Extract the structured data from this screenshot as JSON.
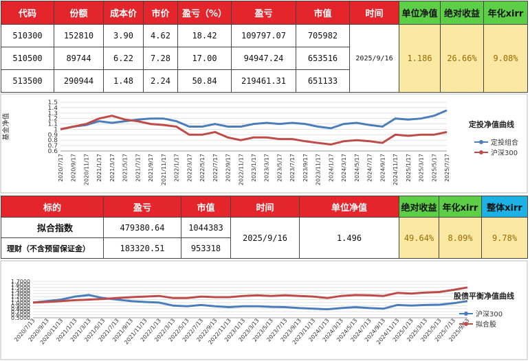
{
  "tables": [
    {
      "headers": [
        "代码",
        "份额",
        "成本价",
        "市价",
        "盈亏（%）",
        "盈亏",
        "市值",
        "时间",
        "单位净值",
        "绝对收益",
        "年化xirr"
      ],
      "rows": [
        [
          "510300",
          "152810",
          "3.90",
          "4.62",
          "18.42",
          "109797.07",
          "705982"
        ],
        [
          "510500",
          "89744",
          "6.22",
          "7.28",
          "17.00",
          "94947.24",
          "653516"
        ],
        [
          "513500",
          "290944",
          "1.48",
          "2.24",
          "50.84",
          "219461.31",
          "651133"
        ]
      ],
      "summary": [
        "2025/9/16",
        "1.186",
        "26.66%",
        "9.08%"
      ]
    },
    {
      "headers": [
        "标的",
        "盈亏",
        "市值",
        "时间",
        "单位净值",
        "绝对收益",
        "年化xirr",
        "整体xirr"
      ],
      "rows": [
        [
          "拟合指数",
          "479380.64",
          "1044383"
        ],
        [
          "理财（不含预留保证金）",
          "183320.51",
          "953318"
        ]
      ],
      "summary": [
        "2025/9/16",
        "1.496",
        "49.64%",
        "8.09%",
        "9.78%"
      ]
    }
  ],
  "chart_data": [
    {
      "type": "line",
      "title": "定投净值曲线",
      "y_label": "基金净值",
      "grid": true,
      "categories": [
        "2020/7/17",
        "2020/9/17",
        "2020/11/17",
        "2021/1/17",
        "2021/3/17",
        "2021/5/17",
        "2021/7/17",
        "2021/9/17",
        "2021/11/17",
        "2022/1/17",
        "2022/3/17",
        "2022/5/17",
        "2022/7/17",
        "2022/9/17",
        "2022/11/17",
        "2023/1/17",
        "2023/3/17",
        "2023/5/17",
        "2023/7/17",
        "2023/9/17",
        "2023/11/17",
        "2024/1/17",
        "2024/3/17",
        "2024/5/17",
        "2024/7/17",
        "2024/9/17",
        "2024/11/17",
        "2025/1/17",
        "2025/3/17",
        "2025/5/17",
        "2025/7/17"
      ],
      "series": [
        {
          "name": "定投组合",
          "color": "#4a7ebb",
          "values": [
            1.0,
            1.05,
            1.08,
            1.15,
            1.12,
            1.15,
            1.18,
            1.2,
            1.2,
            1.15,
            1.05,
            1.05,
            1.1,
            1.05,
            1.05,
            1.1,
            1.12,
            1.1,
            1.12,
            1.1,
            1.05,
            1.02,
            1.1,
            1.12,
            1.08,
            1.05,
            1.2,
            1.18,
            1.2,
            1.25,
            1.35
          ]
        },
        {
          "name": "沪深300",
          "color": "#be4b48",
          "values": [
            1.0,
            1.05,
            1.1,
            1.2,
            1.25,
            1.18,
            1.15,
            1.1,
            1.08,
            1.05,
            0.9,
            0.9,
            0.95,
            0.85,
            0.8,
            0.85,
            0.85,
            0.82,
            0.82,
            0.78,
            0.75,
            0.72,
            0.78,
            0.8,
            0.78,
            0.75,
            0.9,
            0.88,
            0.9,
            0.9,
            0.95
          ]
        }
      ],
      "ylim": [
        0.6,
        1.5
      ],
      "yticks": [
        0.6,
        0.7,
        0.8,
        0.9,
        1,
        1.1,
        1.2,
        1.3,
        1.4,
        1.5
      ]
    },
    {
      "type": "line",
      "title": "股债平衡净值曲线",
      "grid": true,
      "categories": [
        "2020/7/13",
        "2020/9/13",
        "2020/11/13",
        "2021/1/13",
        "2021/3/13",
        "2021/5/13",
        "2021/7/13",
        "2021/9/13",
        "2021/11/13",
        "2022/1/13",
        "2022/3/13",
        "2022/5/13",
        "2022/7/13",
        "2022/9/13",
        "2022/11/13",
        "2023/1/13",
        "2023/3/13",
        "2023/5/13",
        "2023/7/13",
        "2023/9/13",
        "2023/11/13",
        "2024/1/13",
        "2024/3/13",
        "2024/5/13",
        "2024/7/13",
        "2024/9/13",
        "2024/11/13",
        "2025/1/13",
        "2025/3/13",
        "2025/5/13",
        "2025/7/13",
        "2025/9/13"
      ],
      "series": [
        {
          "name": "沪深300",
          "color": "#4a7ebb",
          "values": [
            1.0,
            1.05,
            1.1,
            1.2,
            1.25,
            1.15,
            1.1,
            1.05,
            1.02,
            1.0,
            0.9,
            0.88,
            0.92,
            0.88,
            0.85,
            0.88,
            0.88,
            0.86,
            0.85,
            0.82,
            0.8,
            0.78,
            0.82,
            0.85,
            0.82,
            0.8,
            0.92,
            0.9,
            0.92,
            0.93,
            0.98,
            1.05
          ]
        },
        {
          "name": "拟合股",
          "color": "#be4b48",
          "values": [
            1.0,
            1.02,
            1.05,
            1.08,
            1.1,
            1.12,
            1.15,
            1.18,
            1.2,
            1.22,
            1.15,
            1.15,
            1.2,
            1.18,
            1.18,
            1.22,
            1.24,
            1.22,
            1.24,
            1.22,
            1.2,
            1.15,
            1.22,
            1.25,
            1.24,
            1.22,
            1.32,
            1.3,
            1.33,
            1.35,
            1.42,
            1.5
          ]
        }
      ],
      "ylim": [
        0.5,
        1.7
      ],
      "yticks": [
        {
          "value": 0.5,
          "label": "0.5000"
        },
        {
          "value": 0.6,
          "label": "0.6000"
        },
        {
          "value": 0.7,
          "label": "0.7000"
        },
        {
          "value": 0.8,
          "label": "0.8000"
        },
        {
          "value": 0.9,
          "label": "0.9000"
        },
        {
          "value": 1.0,
          "label": "1.0000"
        },
        {
          "value": 1.1,
          "label": "1.1000"
        },
        {
          "value": 1.2,
          "label": "1.2000"
        },
        {
          "value": 1.3,
          "label": "1.3000"
        },
        {
          "value": 1.4,
          "label": "1.4000"
        },
        {
          "value": 1.5,
          "label": "1.5000"
        },
        {
          "value": 1.6,
          "label": "1.6000"
        },
        {
          "value": 1.7,
          "label": "1.7000"
        }
      ]
    }
  ]
}
